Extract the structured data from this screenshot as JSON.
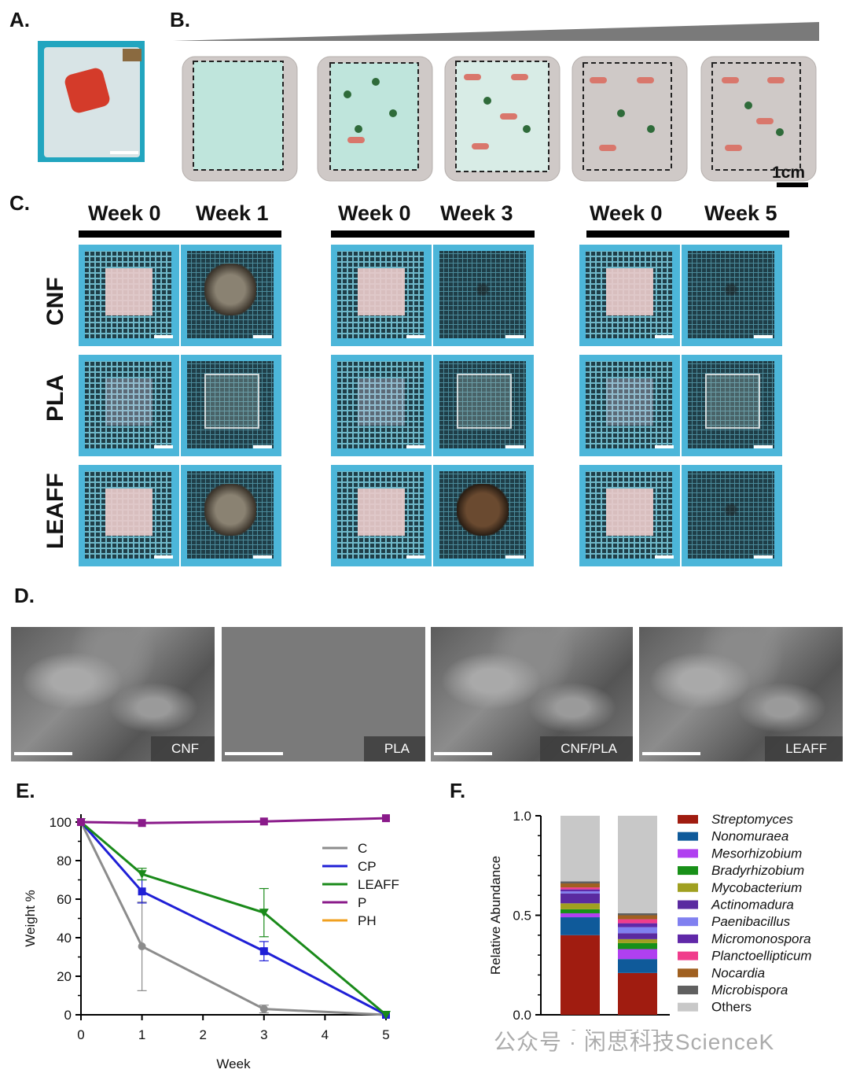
{
  "panels": {
    "A": "A.",
    "B": "B.",
    "C": "C.",
    "D": "D.",
    "E": "E.",
    "F": "F."
  },
  "panel_b": {
    "scale_label": "1cm"
  },
  "panel_c": {
    "groups": [
      {
        "left": "Week 0",
        "right": "Week 1"
      },
      {
        "left": "Week 0",
        "right": "Week 3"
      },
      {
        "left": "Week 0",
        "right": "Week 5"
      }
    ],
    "rows": [
      "CNF",
      "PLA",
      "LEAFF"
    ]
  },
  "panel_d": {
    "labels": [
      "CNF",
      "PLA",
      "CNF/PLA",
      "LEAFF"
    ]
  },
  "chart_data": [
    {
      "type": "line",
      "xlabel": "Week",
      "ylabel": "Weight %",
      "xlim": [
        0,
        5
      ],
      "ylim": [
        0,
        100
      ],
      "xticks": [
        "0",
        "1",
        "2",
        "3",
        "4",
        "5"
      ],
      "yticks": [
        "0",
        "20",
        "40",
        "60",
        "80",
        "100"
      ],
      "legend_position": "right",
      "series": [
        {
          "name": "C",
          "color": "#8c8c8c",
          "marker": "circle",
          "x": [
            0,
            1,
            3,
            5
          ],
          "y": [
            100,
            35.5,
            3,
            0
          ],
          "err": [
            0,
            23,
            2,
            0
          ]
        },
        {
          "name": "CP",
          "color": "#1f1fd6",
          "marker": "square",
          "x": [
            0,
            1,
            3,
            5
          ],
          "y": [
            100,
            64,
            33,
            0
          ],
          "err": [
            0,
            6,
            5,
            0
          ]
        },
        {
          "name": "LEAFF",
          "color": "#1a8a1a",
          "marker": "triangle",
          "x": [
            0,
            1,
            3,
            5
          ],
          "y": [
            100,
            73,
            53,
            0
          ],
          "err": [
            0,
            3,
            12.5,
            0
          ]
        },
        {
          "name": "P",
          "color": "#8a1a8a",
          "marker": "square",
          "x": [
            0,
            1,
            3,
            5
          ],
          "y": [
            100,
            99.5,
            100.3,
            102
          ],
          "err": [
            0,
            0,
            0,
            0
          ]
        },
        {
          "name": "PH",
          "color": "#f0a020",
          "marker": "none",
          "x": [],
          "y": [],
          "err": []
        }
      ]
    },
    {
      "type": "bar",
      "stacked": true,
      "ylabel": "Relative Abundance",
      "ylim": [
        0,
        1.0
      ],
      "yticks": [
        "0.0",
        "0.5",
        "1.0"
      ],
      "categories": [
        "Soil",
        "LEAFF"
      ],
      "legend_position": "right",
      "series": [
        {
          "name": "Streptomyces",
          "color": "#a01c10",
          "italic": true,
          "values": [
            0.4,
            0.21
          ]
        },
        {
          "name": "Nonomuraea",
          "color": "#0f5a9a",
          "italic": true,
          "values": [
            0.09,
            0.07
          ]
        },
        {
          "name": "Mesorhizobium",
          "color": "#b040f0",
          "italic": true,
          "values": [
            0.02,
            0.05
          ]
        },
        {
          "name": "Bradyrhizobium",
          "color": "#189018",
          "italic": true,
          "values": [
            0.02,
            0.03
          ]
        },
        {
          "name": "Mycobacterium",
          "color": "#a0a020",
          "italic": true,
          "values": [
            0.03,
            0.02
          ]
        },
        {
          "name": "Actinomadura",
          "color": "#5a2aa0",
          "italic": true,
          "values": [
            0.05,
            0.03
          ]
        },
        {
          "name": "Paenibacillus",
          "color": "#8080f0",
          "italic": true,
          "values": [
            0.01,
            0.03
          ]
        },
        {
          "name": "Micromonospora",
          "color": "#6028a8",
          "italic": true,
          "values": [
            0.01,
            0.02
          ]
        },
        {
          "name": "Planctoellipticum",
          "color": "#f03c8c",
          "italic": true,
          "values": [
            0.01,
            0.02
          ]
        },
        {
          "name": "Nocardia",
          "color": "#a06020",
          "italic": true,
          "values": [
            0.02,
            0.02
          ]
        },
        {
          "name": "Microbispora",
          "color": "#606060",
          "italic": true,
          "values": [
            0.01,
            0.01
          ]
        },
        {
          "name": "Others",
          "color": "#c8c8c8",
          "italic": false,
          "values": [
            0.33,
            0.49
          ]
        }
      ]
    }
  ],
  "watermark": "公众号 · 闲思科技ScienceK"
}
